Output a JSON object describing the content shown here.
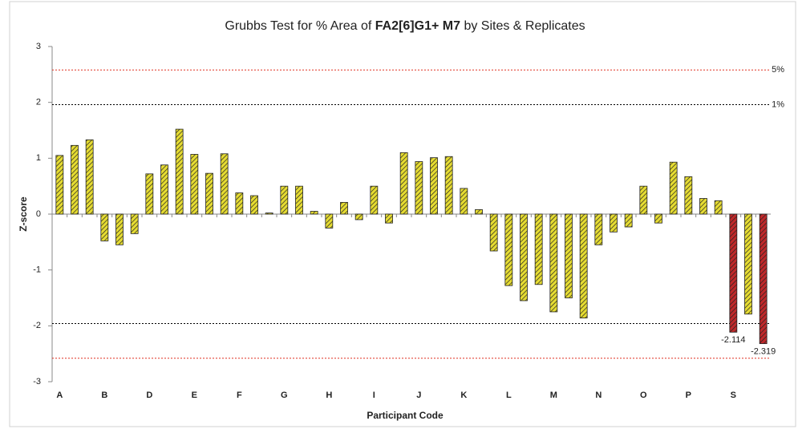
{
  "chart_data": {
    "type": "bar",
    "title": [
      "Grubbs Test for % Area of ",
      "FA2[6]G1+ M7",
      " by Sites & Replicates"
    ],
    "x_label": "Participant Code",
    "y_label": "Z-score",
    "categories": [
      "A",
      null,
      null,
      "B",
      null,
      null,
      "D",
      null,
      null,
      "E",
      null,
      null,
      "F",
      null,
      null,
      "G",
      null,
      null,
      "H",
      null,
      null,
      "I",
      null,
      null,
      "J",
      null,
      null,
      "K",
      null,
      null,
      "L",
      null,
      null,
      "M",
      null,
      null,
      "N",
      null,
      null,
      "O",
      null,
      null,
      "P",
      null,
      null,
      "S",
      null,
      null
    ],
    "values": [
      1.05,
      1.23,
      1.33,
      -0.48,
      -0.55,
      -0.35,
      0.72,
      0.88,
      1.52,
      1.07,
      0.73,
      1.08,
      0.38,
      0.33,
      0.02,
      0.5,
      0.5,
      0.05,
      -0.25,
      0.21,
      -0.1,
      0.5,
      -0.16,
      1.1,
      0.94,
      1.01,
      1.03,
      0.46,
      0.08,
      -0.66,
      -1.28,
      -1.55,
      -1.26,
      -1.75,
      -1.5,
      -1.86,
      -0.55,
      -0.32,
      -0.23,
      0.5,
      -0.16,
      0.93,
      0.67,
      0.28,
      0.24,
      -2.114,
      -1.79,
      -2.319
    ],
    "value_labels": [
      null,
      null,
      null,
      null,
      null,
      null,
      null,
      null,
      null,
      null,
      null,
      null,
      null,
      null,
      null,
      null,
      null,
      null,
      null,
      null,
      null,
      null,
      null,
      null,
      null,
      null,
      null,
      null,
      null,
      null,
      null,
      null,
      null,
      null,
      null,
      null,
      null,
      null,
      null,
      null,
      null,
      null,
      null,
      null,
      null,
      "-2.114",
      null,
      "-2.319"
    ],
    "colors": [
      "#e6dc32",
      "#e6dc32",
      "#e6dc32",
      "#e6dc32",
      "#e6dc32",
      "#e6dc32",
      "#e6dc32",
      "#e6dc32",
      "#e6dc32",
      "#e6dc32",
      "#e6dc32",
      "#e6dc32",
      "#e6dc32",
      "#e6dc32",
      "#e6dc32",
      "#e6dc32",
      "#e6dc32",
      "#e6dc32",
      "#e6dc32",
      "#e6dc32",
      "#e6dc32",
      "#e6dc32",
      "#e6dc32",
      "#e6dc32",
      "#e6dc32",
      "#e6dc32",
      "#e6dc32",
      "#e6dc32",
      "#e6dc32",
      "#e6dc32",
      "#e6dc32",
      "#e6dc32",
      "#e6dc32",
      "#e6dc32",
      "#e6dc32",
      "#e6dc32",
      "#e6dc32",
      "#e6dc32",
      "#e6dc32",
      "#e6dc32",
      "#e6dc32",
      "#e6dc32",
      "#e6dc32",
      "#e6dc32",
      "#e6dc32",
      "#c0282a",
      "#e6dc32",
      "#c0282a"
    ],
    "ylim": [
      -3,
      3
    ],
    "yticks": [
      -3,
      -2,
      -1,
      0,
      1,
      2,
      3
    ],
    "reference_lines": [
      {
        "value": 2.58,
        "label": "5%",
        "color": "#e03020"
      },
      {
        "value": 1.96,
        "label": "1%",
        "color": "#000000"
      },
      {
        "value": -1.96,
        "color": "#000000"
      },
      {
        "value": -2.58,
        "color": "#e03020"
      }
    ]
  }
}
